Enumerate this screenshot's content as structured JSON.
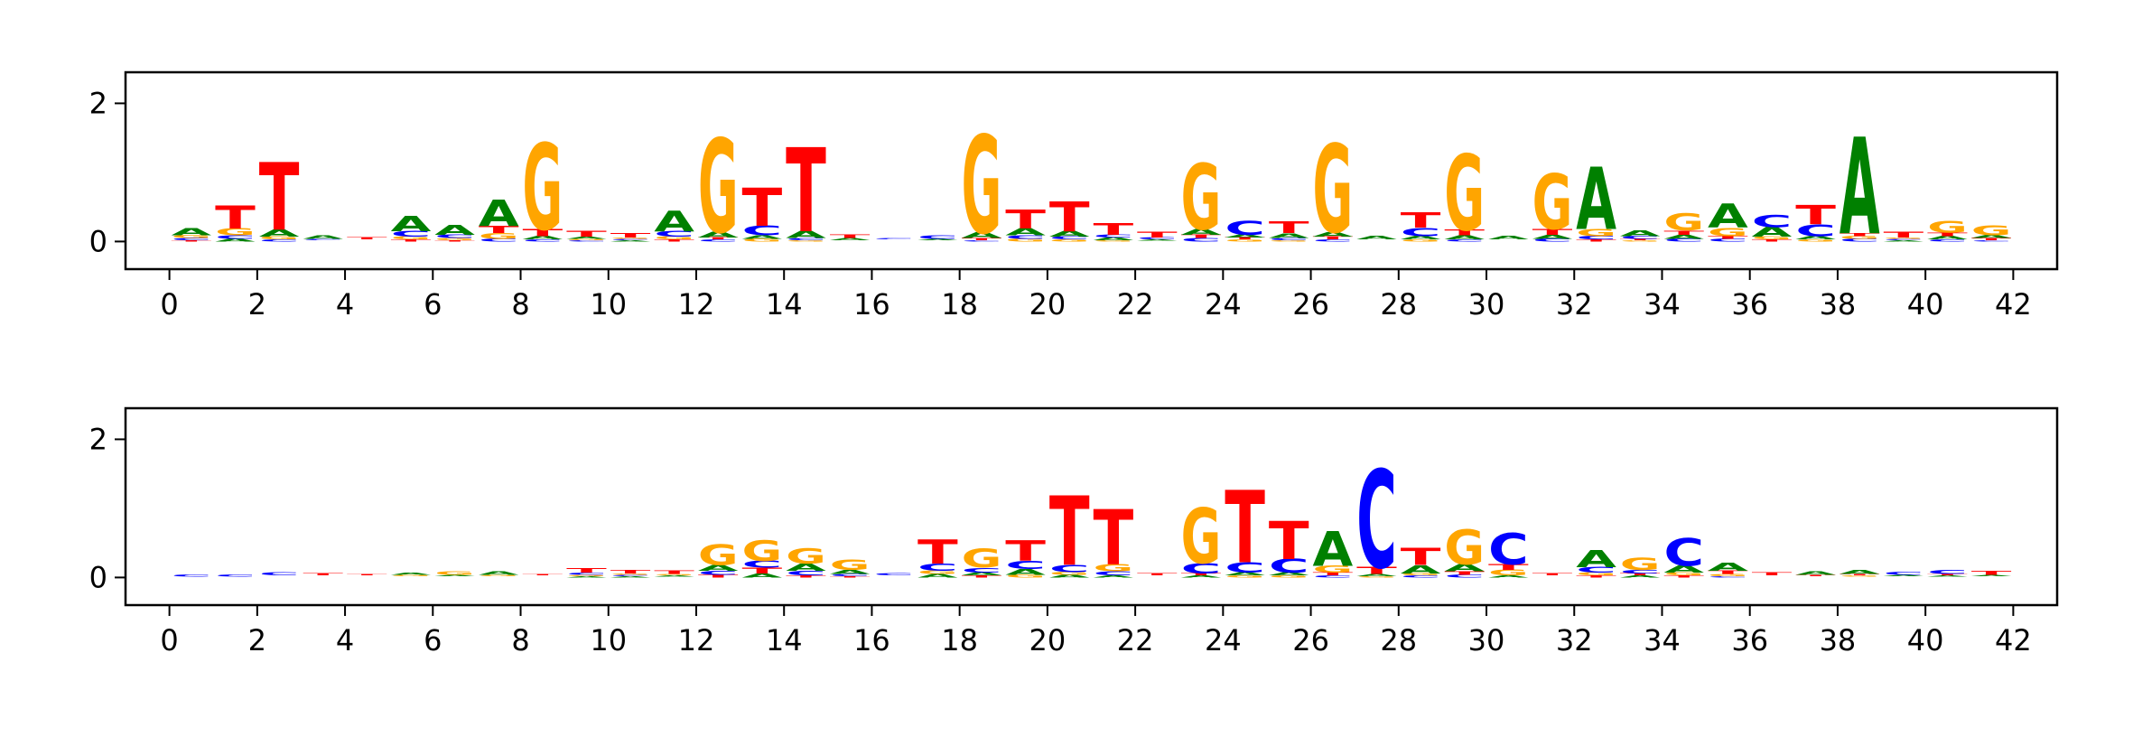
{
  "colors": {
    "A": "#008000",
    "C": "#0000ff",
    "G": "#ffa500",
    "T": "#ff0000"
  },
  "chart_data": [
    {
      "type": "sequence-logo",
      "title": "",
      "xlabel": "",
      "ylabel": "",
      "xlim": [
        -1,
        43
      ],
      "ylim": [
        -0.4,
        2.45
      ],
      "xticks": [
        0,
        2,
        4,
        6,
        8,
        10,
        12,
        14,
        16,
        18,
        20,
        22,
        24,
        26,
        28,
        30,
        32,
        34,
        36,
        38,
        40,
        42
      ],
      "yticks": [
        0,
        2
      ],
      "grid": false,
      "letters": [
        "A",
        "C",
        "G",
        "T"
      ],
      "stacks": [
        {
          "x": 0.5,
          "A": 0.1,
          "C": 0.03,
          "G": 0.04,
          "T": 0.02
        },
        {
          "x": 1.5,
          "A": 0.04,
          "C": 0.05,
          "G": 0.1,
          "T": 0.33
        },
        {
          "x": 2.5,
          "A": 0.1,
          "C": 0.03,
          "G": 0.04,
          "T": 0.98
        },
        {
          "x": 3.5,
          "A": 0.05,
          "C": 0.02,
          "G": 0.01,
          "T": 0.01
        },
        {
          "x": 4.5,
          "A": 0.01,
          "C": 0.01,
          "G": 0.01,
          "T": 0.03
        },
        {
          "x": 5.5,
          "A": 0.22,
          "C": 0.08,
          "G": 0.04,
          "T": 0.03
        },
        {
          "x": 6.5,
          "A": 0.14,
          "C": 0.05,
          "G": 0.03,
          "T": 0.02
        },
        {
          "x": 7.5,
          "A": 0.38,
          "C": 0.04,
          "G": 0.08,
          "T": 0.1
        },
        {
          "x": 8.5,
          "A": 0.05,
          "C": 0.03,
          "G": 1.25,
          "T": 0.1
        },
        {
          "x": 9.5,
          "A": 0.03,
          "C": 0.02,
          "G": 0.02,
          "T": 0.08
        },
        {
          "x": 10.5,
          "A": 0.02,
          "C": 0.02,
          "G": 0.02,
          "T": 0.07
        },
        {
          "x": 11.5,
          "A": 0.3,
          "C": 0.08,
          "G": 0.04,
          "T": 0.03
        },
        {
          "x": 12.5,
          "A": 0.08,
          "C": 0.03,
          "G": 1.36,
          "T": 0.03
        },
        {
          "x": 13.5,
          "A": 0.05,
          "C": 0.14,
          "G": 0.04,
          "T": 0.55
        },
        {
          "x": 14.5,
          "A": 0.1,
          "C": 0.03,
          "G": 0.02,
          "T": 1.22
        },
        {
          "x": 15.5,
          "A": 0.03,
          "C": 0.01,
          "G": 0.01,
          "T": 0.05
        },
        {
          "x": 16.5,
          "A": 0.01,
          "C": 0.02,
          "G": 0.01,
          "T": 0.01
        },
        {
          "x": 17.5,
          "A": 0.02,
          "C": 0.05,
          "G": 0.01,
          "T": 0.01
        },
        {
          "x": 18.5,
          "A": 0.08,
          "C": 0.02,
          "G": 1.42,
          "T": 0.03
        },
        {
          "x": 19.5,
          "A": 0.1,
          "C": 0.05,
          "G": 0.04,
          "T": 0.27
        },
        {
          "x": 20.5,
          "A": 0.08,
          "C": 0.04,
          "G": 0.03,
          "T": 0.43
        },
        {
          "x": 21.5,
          "A": 0.04,
          "C": 0.04,
          "G": 0.02,
          "T": 0.17
        },
        {
          "x": 22.5,
          "A": 0.02,
          "C": 0.03,
          "G": 0.01,
          "T": 0.08
        },
        {
          "x": 23.5,
          "A": 0.08,
          "C": 0.05,
          "G": 0.95,
          "T": 0.05
        },
        {
          "x": 24.5,
          "A": 0.04,
          "C": 0.2,
          "G": 0.03,
          "T": 0.03
        },
        {
          "x": 25.5,
          "A": 0.07,
          "C": 0.03,
          "G": 0.02,
          "T": 0.17
        },
        {
          "x": 26.5,
          "A": 0.07,
          "C": 0.03,
          "G": 1.28,
          "T": 0.04
        },
        {
          "x": 27.5,
          "A": 0.05,
          "C": 0.01,
          "G": 0.01,
          "T": 0.01
        },
        {
          "x": 28.5,
          "A": 0.05,
          "C": 0.12,
          "G": 0.03,
          "T": 0.22
        },
        {
          "x": 29.5,
          "A": 0.06,
          "C": 0.03,
          "G": 1.1,
          "T": 0.08
        },
        {
          "x": 30.5,
          "A": 0.05,
          "C": 0.01,
          "G": 0.01,
          "T": 0.01
        },
        {
          "x": 31.5,
          "A": 0.06,
          "C": 0.04,
          "G": 0.8,
          "T": 0.08
        },
        {
          "x": 32.5,
          "A": 0.9,
          "C": 0.05,
          "G": 0.1,
          "T": 0.03
        },
        {
          "x": 33.5,
          "A": 0.08,
          "C": 0.04,
          "G": 0.02,
          "T": 0.02
        },
        {
          "x": 34.5,
          "A": 0.06,
          "C": 0.04,
          "G": 0.25,
          "T": 0.06
        },
        {
          "x": 35.5,
          "A": 0.35,
          "C": 0.04,
          "G": 0.12,
          "T": 0.04
        },
        {
          "x": 36.5,
          "A": 0.14,
          "C": 0.18,
          "G": 0.04,
          "T": 0.03
        },
        {
          "x": 37.5,
          "A": 0.05,
          "C": 0.17,
          "G": 0.03,
          "T": 0.28
        },
        {
          "x": 38.5,
          "A": 1.4,
          "C": 0.04,
          "G": 0.04,
          "T": 0.04
        },
        {
          "x": 39.5,
          "A": 0.02,
          "C": 0.02,
          "G": 0.02,
          "T": 0.08
        },
        {
          "x": 40.5,
          "A": 0.05,
          "C": 0.03,
          "G": 0.17,
          "T": 0.05
        },
        {
          "x": 41.5,
          "A": 0.04,
          "C": 0.02,
          "G": 0.14,
          "T": 0.03
        }
      ]
    },
    {
      "type": "sequence-logo",
      "title": "",
      "xlabel": "",
      "ylabel": "",
      "xlim": [
        -1,
        43
      ],
      "ylim": [
        -0.4,
        2.45
      ],
      "xticks": [
        0,
        2,
        4,
        6,
        8,
        10,
        12,
        14,
        16,
        18,
        20,
        22,
        24,
        26,
        28,
        30,
        32,
        34,
        36,
        38,
        40,
        42
      ],
      "yticks": [
        0,
        2
      ],
      "grid": false,
      "letters": [
        "A",
        "C",
        "G",
        "T"
      ],
      "stacks": [
        {
          "x": 0.5,
          "A": 0.0,
          "C": 0.03,
          "G": 0.0,
          "T": 0.01
        },
        {
          "x": 1.5,
          "A": 0.0,
          "C": 0.03,
          "G": 0.0,
          "T": 0.01
        },
        {
          "x": 2.5,
          "A": 0.01,
          "C": 0.04,
          "G": 0.01,
          "T": 0.01
        },
        {
          "x": 3.5,
          "A": 0.01,
          "C": 0.01,
          "G": 0.01,
          "T": 0.03
        },
        {
          "x": 4.5,
          "A": 0.01,
          "C": 0.01,
          "G": 0.01,
          "T": 0.02
        },
        {
          "x": 5.5,
          "A": 0.03,
          "C": 0.01,
          "G": 0.02,
          "T": 0.01
        },
        {
          "x": 6.5,
          "A": 0.02,
          "C": 0.01,
          "G": 0.05,
          "T": 0.01
        },
        {
          "x": 7.5,
          "A": 0.05,
          "C": 0.01,
          "G": 0.02,
          "T": 0.01
        },
        {
          "x": 8.5,
          "A": 0.01,
          "C": 0.01,
          "G": 0.01,
          "T": 0.02
        },
        {
          "x": 9.5,
          "A": 0.02,
          "C": 0.03,
          "G": 0.02,
          "T": 0.07
        },
        {
          "x": 10.5,
          "A": 0.02,
          "C": 0.02,
          "G": 0.02,
          "T": 0.05
        },
        {
          "x": 11.5,
          "A": 0.02,
          "C": 0.01,
          "G": 0.02,
          "T": 0.05
        },
        {
          "x": 12.5,
          "A": 0.08,
          "C": 0.06,
          "G": 0.3,
          "T": 0.04
        },
        {
          "x": 13.5,
          "A": 0.06,
          "C": 0.1,
          "G": 0.3,
          "T": 0.08
        },
        {
          "x": 14.5,
          "A": 0.1,
          "C": 0.07,
          "G": 0.22,
          "T": 0.03
        },
        {
          "x": 15.5,
          "A": 0.06,
          "C": 0.03,
          "G": 0.15,
          "T": 0.02
        },
        {
          "x": 16.5,
          "A": 0.01,
          "C": 0.03,
          "G": 0.01,
          "T": 0.01
        },
        {
          "x": 17.5,
          "A": 0.05,
          "C": 0.1,
          "G": 0.05,
          "T": 0.35
        },
        {
          "x": 18.5,
          "A": 0.04,
          "C": 0.07,
          "G": 0.27,
          "T": 0.03
        },
        {
          "x": 19.5,
          "A": 0.08,
          "C": 0.12,
          "G": 0.04,
          "T": 0.3
        },
        {
          "x": 20.5,
          "A": 0.04,
          "C": 0.1,
          "G": 0.04,
          "T": 1.0
        },
        {
          "x": 21.5,
          "A": 0.03,
          "C": 0.06,
          "G": 0.1,
          "T": 0.8
        },
        {
          "x": 22.5,
          "A": 0.01,
          "C": 0.01,
          "G": 0.01,
          "T": 0.03
        },
        {
          "x": 23.5,
          "A": 0.03,
          "C": 0.15,
          "G": 0.8,
          "T": 0.03
        },
        {
          "x": 24.5,
          "A": 0.04,
          "C": 0.15,
          "G": 0.03,
          "T": 1.05
        },
        {
          "x": 25.5,
          "A": 0.04,
          "C": 0.2,
          "G": 0.03,
          "T": 0.55
        },
        {
          "x": 26.5,
          "A": 0.5,
          "C": 0.03,
          "G": 0.1,
          "T": 0.04
        },
        {
          "x": 27.5,
          "A": 0.03,
          "C": 1.42,
          "G": 0.02,
          "T": 0.1
        },
        {
          "x": 28.5,
          "A": 0.12,
          "C": 0.03,
          "G": 0.03,
          "T": 0.25
        },
        {
          "x": 29.5,
          "A": 0.1,
          "C": 0.04,
          "G": 0.5,
          "T": 0.05
        },
        {
          "x": 30.5,
          "A": 0.03,
          "C": 0.45,
          "G": 0.08,
          "T": 0.08
        },
        {
          "x": 31.5,
          "A": 0.01,
          "C": 0.01,
          "G": 0.01,
          "T": 0.03
        },
        {
          "x": 32.5,
          "A": 0.25,
          "C": 0.08,
          "G": 0.04,
          "T": 0.03
        },
        {
          "x": 33.5,
          "A": 0.03,
          "C": 0.05,
          "G": 0.18,
          "T": 0.03
        },
        {
          "x": 34.5,
          "A": 0.1,
          "C": 0.4,
          "G": 0.04,
          "T": 0.03
        },
        {
          "x": 35.5,
          "A": 0.12,
          "C": 0.02,
          "G": 0.03,
          "T": 0.05
        },
        {
          "x": 36.5,
          "A": 0.01,
          "C": 0.01,
          "G": 0.01,
          "T": 0.04
        },
        {
          "x": 37.5,
          "A": 0.05,
          "C": 0.01,
          "G": 0.01,
          "T": 0.02
        },
        {
          "x": 38.5,
          "A": 0.06,
          "C": 0.01,
          "G": 0.02,
          "T": 0.02
        },
        {
          "x": 39.5,
          "A": 0.02,
          "C": 0.04,
          "G": 0.01,
          "T": 0.01
        },
        {
          "x": 40.5,
          "A": 0.02,
          "C": 0.06,
          "G": 0.01,
          "T": 0.02
        },
        {
          "x": 41.5,
          "A": 0.02,
          "C": 0.01,
          "G": 0.01,
          "T": 0.06
        }
      ]
    }
  ]
}
